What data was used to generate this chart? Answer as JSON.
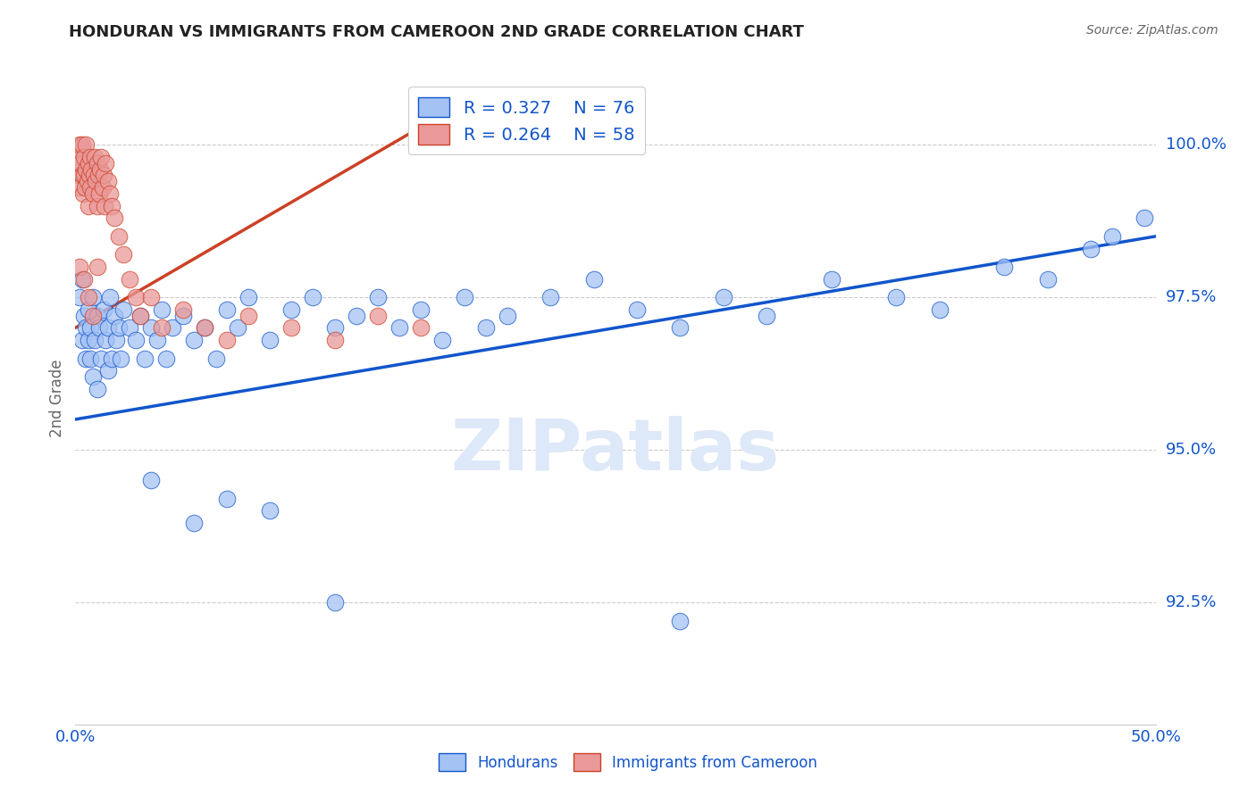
{
  "title": "HONDURAN VS IMMIGRANTS FROM CAMEROON 2ND GRADE CORRELATION CHART",
  "source": "Source: ZipAtlas.com",
  "ylabel": "2nd Grade",
  "y_min": 90.5,
  "y_max": 101.2,
  "x_min": 0.0,
  "x_max": 50.0,
  "legend_blue_r": "R = 0.327",
  "legend_blue_n": "N = 76",
  "legend_pink_r": "R = 0.264",
  "legend_pink_n": "N = 58",
  "blue_color": "#a4c2f4",
  "pink_color": "#ea9999",
  "line_blue_color": "#1155cc",
  "line_pink_color": "#cc4125",
  "watermark": "ZIPatlas",
  "yticks": [
    92.5,
    95.0,
    97.5,
    100.0
  ],
  "blue_line": {
    "x0": 0,
    "x1": 50,
    "y0": 95.5,
    "y1": 98.5
  },
  "pink_line": {
    "x0": 0,
    "x1": 17,
    "y0": 97.0,
    "y1": 100.5
  },
  "blue_x": [
    0.2,
    0.3,
    0.3,
    0.4,
    0.5,
    0.5,
    0.6,
    0.6,
    0.7,
    0.7,
    0.8,
    0.8,
    0.9,
    1.0,
    1.0,
    1.1,
    1.2,
    1.3,
    1.4,
    1.5,
    1.5,
    1.6,
    1.7,
    1.8,
    1.9,
    2.0,
    2.1,
    2.2,
    2.5,
    2.8,
    3.0,
    3.2,
    3.5,
    3.8,
    4.0,
    4.2,
    4.5,
    5.0,
    5.5,
    6.0,
    6.5,
    7.0,
    7.5,
    8.0,
    9.0,
    10.0,
    11.0,
    12.0,
    13.0,
    14.0,
    15.0,
    16.0,
    17.0,
    18.0,
    19.0,
    20.0,
    22.0,
    24.0,
    26.0,
    28.0,
    30.0,
    32.0,
    35.0,
    38.0,
    40.0,
    43.0,
    45.0,
    47.0,
    48.0,
    49.5,
    3.5,
    5.5,
    7.0,
    9.0,
    12.0,
    28.0
  ],
  "blue_y": [
    97.5,
    96.8,
    97.8,
    97.2,
    96.5,
    97.0,
    96.8,
    97.3,
    96.5,
    97.0,
    96.2,
    97.5,
    96.8,
    97.2,
    96.0,
    97.0,
    96.5,
    97.3,
    96.8,
    97.0,
    96.3,
    97.5,
    96.5,
    97.2,
    96.8,
    97.0,
    96.5,
    97.3,
    97.0,
    96.8,
    97.2,
    96.5,
    97.0,
    96.8,
    97.3,
    96.5,
    97.0,
    97.2,
    96.8,
    97.0,
    96.5,
    97.3,
    97.0,
    97.5,
    96.8,
    97.3,
    97.5,
    97.0,
    97.2,
    97.5,
    97.0,
    97.3,
    96.8,
    97.5,
    97.0,
    97.2,
    97.5,
    97.8,
    97.3,
    97.0,
    97.5,
    97.2,
    97.8,
    97.5,
    97.3,
    98.0,
    97.8,
    98.3,
    98.5,
    98.8,
    94.5,
    93.8,
    94.2,
    94.0,
    92.5,
    92.2
  ],
  "pink_x": [
    0.1,
    0.15,
    0.2,
    0.2,
    0.25,
    0.3,
    0.3,
    0.35,
    0.4,
    0.4,
    0.45,
    0.5,
    0.5,
    0.55,
    0.6,
    0.6,
    0.65,
    0.7,
    0.7,
    0.75,
    0.8,
    0.85,
    0.9,
    0.95,
    1.0,
    1.0,
    1.05,
    1.1,
    1.15,
    1.2,
    1.25,
    1.3,
    1.35,
    1.4,
    1.5,
    1.6,
    1.7,
    1.8,
    2.0,
    2.2,
    2.5,
    2.8,
    3.0,
    3.5,
    4.0,
    5.0,
    6.0,
    7.0,
    8.0,
    10.0,
    12.0,
    14.0,
    16.0,
    0.2,
    0.4,
    0.6,
    0.8,
    1.0
  ],
  "pink_y": [
    99.8,
    99.5,
    100.0,
    99.3,
    99.7,
    99.5,
    100.0,
    99.2,
    99.8,
    99.5,
    99.3,
    99.6,
    100.0,
    99.4,
    99.7,
    99.0,
    99.5,
    99.8,
    99.3,
    99.6,
    99.2,
    99.5,
    99.8,
    99.4,
    99.7,
    99.0,
    99.5,
    99.2,
    99.6,
    99.8,
    99.3,
    99.5,
    99.0,
    99.7,
    99.4,
    99.2,
    99.0,
    98.8,
    98.5,
    98.2,
    97.8,
    97.5,
    97.2,
    97.5,
    97.0,
    97.3,
    97.0,
    96.8,
    97.2,
    97.0,
    96.8,
    97.2,
    97.0,
    98.0,
    97.8,
    97.5,
    97.2,
    98.0
  ]
}
